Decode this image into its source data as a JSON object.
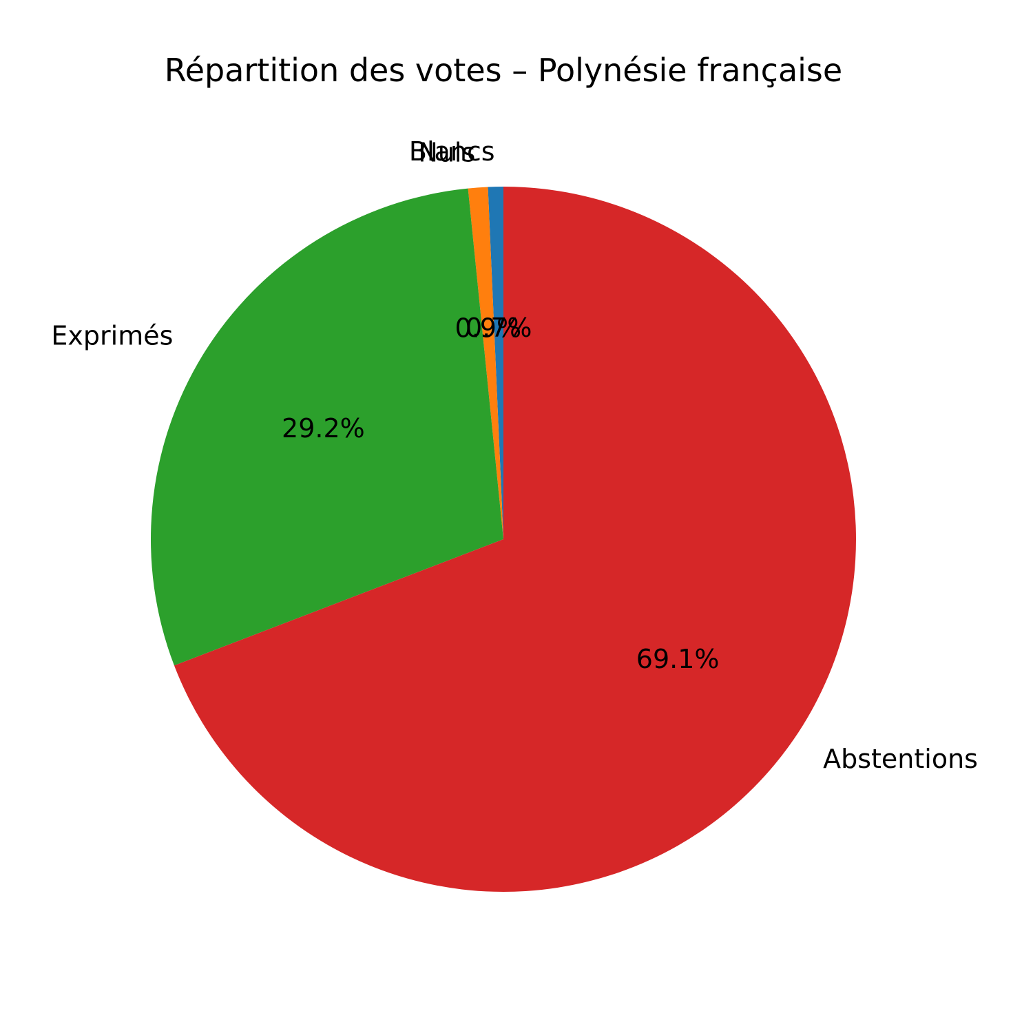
{
  "chart_data": {
    "type": "pie",
    "title": "Répartition des votes – Polynésie française",
    "slices": [
      {
        "label": "Blancs",
        "value": 0.7,
        "pct_label": "0.7%",
        "color": "#1f77b4"
      },
      {
        "label": "Nuls",
        "value": 0.9,
        "pct_label": "0.9%",
        "color": "#ff7f0e"
      },
      {
        "label": "Exprimés",
        "value": 29.2,
        "pct_label": "29.2%",
        "color": "#2ca02c"
      },
      {
        "label": "Abstentions",
        "value": 69.1,
        "pct_label": "69.1%",
        "color": "#d62728"
      }
    ],
    "start_angle_deg": 90,
    "direction": "counterclockwise",
    "legend": "none"
  }
}
